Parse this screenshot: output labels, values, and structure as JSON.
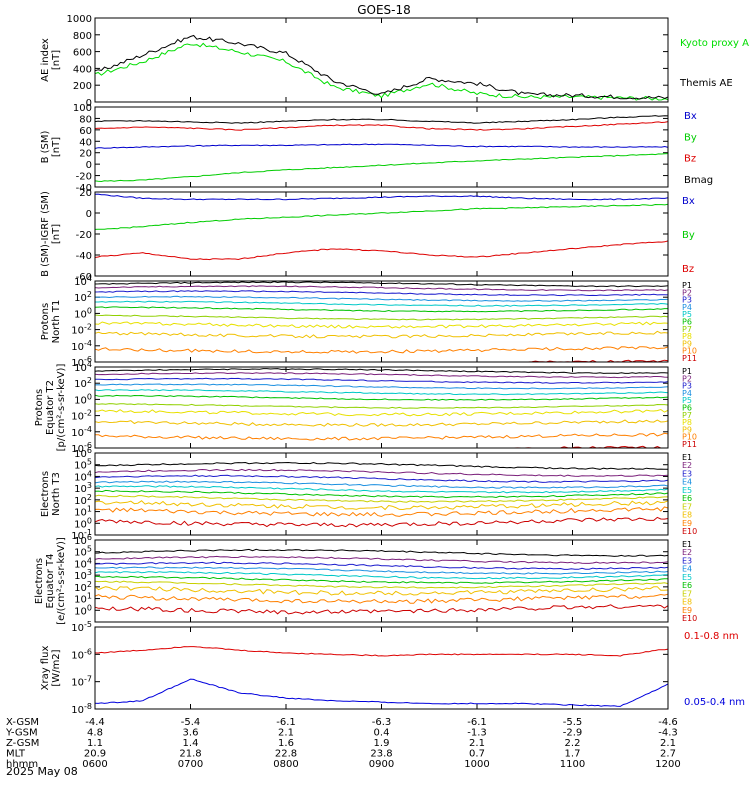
{
  "title": "GOES-18",
  "date": "2025 May 08",
  "ephemeris": {
    "rows": [
      {
        "label": "X-GSM",
        "values": [
          "-4.4",
          "-5.4",
          "-6.1",
          "-6.3",
          "-6.1",
          "-5.5",
          "-4.6"
        ]
      },
      {
        "label": "Y-GSM",
        "values": [
          "4.8",
          "3.6",
          "2.1",
          "0.4",
          "-1.3",
          "-2.9",
          "-4.3"
        ]
      },
      {
        "label": "Z-GSM",
        "values": [
          "1.1",
          "1.4",
          "1.6",
          "1.9",
          "2.1",
          "2.2",
          "2.1"
        ]
      },
      {
        "label": "MLT",
        "values": [
          "20.9",
          "21.8",
          "22.8",
          "23.8",
          "0.7",
          "1.7",
          "2.7"
        ]
      },
      {
        "label": "hhmm",
        "values": [
          "0600",
          "0700",
          "0800",
          "0900",
          "1000",
          "1100",
          "1200"
        ]
      }
    ]
  },
  "chart_data": [
    {
      "type": "line",
      "ylabel": [
        "AE index",
        "[nT]"
      ],
      "ylim": [
        0,
        1000
      ],
      "yticks": [
        "1000",
        "800",
        "600",
        "400",
        "200",
        "0"
      ],
      "x": [
        "0600",
        "0630",
        "0700",
        "0730",
        "0800",
        "0830",
        "0900",
        "0930",
        "1000",
        "1030",
        "1100",
        "1130",
        "1200"
      ],
      "series": [
        {
          "name": "Kyoto proxy AE",
          "color": "#00dd00",
          "values": [
            320,
            480,
            700,
            600,
            480,
            180,
            70,
            220,
            100,
            60,
            60,
            50,
            40
          ]
        },
        {
          "name": "Themis AE",
          "color": "#000000",
          "values": [
            350,
            560,
            780,
            700,
            580,
            250,
            90,
            280,
            220,
            90,
            80,
            60,
            50
          ]
        }
      ]
    },
    {
      "type": "line",
      "ylabel": [
        "B (SM)",
        "[nT]"
      ],
      "ylim": [
        -40,
        100
      ],
      "yticks": [
        "100",
        "80",
        "60",
        "40",
        "20",
        "0",
        "-20",
        "-40"
      ],
      "x": [
        "0600",
        "0630",
        "0700",
        "0730",
        "0800",
        "0830",
        "0900",
        "0930",
        "1000",
        "1030",
        "1100",
        "1130",
        "1200"
      ],
      "series": [
        {
          "name": "Bx",
          "color": "#0000cc",
          "values": [
            28,
            30,
            32,
            33,
            33,
            34,
            35,
            33,
            31,
            31,
            30,
            30,
            30
          ]
        },
        {
          "name": "By",
          "color": "#00cc00",
          "values": [
            -30,
            -28,
            -22,
            -15,
            -10,
            -6,
            -2,
            2,
            6,
            9,
            12,
            15,
            18
          ]
        },
        {
          "name": "Bz",
          "color": "#dd0000",
          "values": [
            62,
            65,
            63,
            60,
            64,
            68,
            68,
            62,
            60,
            62,
            66,
            70,
            74
          ]
        },
        {
          "name": "Bmag",
          "color": "#000000",
          "values": [
            75,
            76,
            74,
            72,
            75,
            78,
            78,
            75,
            72,
            75,
            78,
            82,
            85
          ]
        }
      ]
    },
    {
      "type": "line",
      "ylabel": [
        "B (SM)-IGRF (SM)",
        "[nT]"
      ],
      "ylim": [
        -60,
        20
      ],
      "yticks": [
        "20",
        "0",
        "-20",
        "-40",
        "-60"
      ],
      "x": [
        "0600",
        "0630",
        "0700",
        "0730",
        "0800",
        "0830",
        "0900",
        "0930",
        "1000",
        "1030",
        "1100",
        "1130",
        "1200"
      ],
      "series": [
        {
          "name": "Bx",
          "color": "#0000cc",
          "values": [
            18,
            14,
            13,
            13,
            13,
            14,
            15,
            16,
            16,
            14,
            13,
            13,
            14
          ]
        },
        {
          "name": "By",
          "color": "#00cc00",
          "values": [
            -16,
            -13,
            -9,
            -6,
            -4,
            -2,
            0,
            2,
            4,
            5,
            6,
            7,
            8
          ]
        },
        {
          "name": "Bz",
          "color": "#dd0000",
          "values": [
            -42,
            -38,
            -44,
            -44,
            -38,
            -34,
            -36,
            -40,
            -42,
            -38,
            -34,
            -30,
            -27
          ]
        }
      ]
    },
    {
      "type": "line",
      "scale": "log",
      "ylabel": [
        "Protons",
        "North T1"
      ],
      "ylim": [
        -6,
        4
      ],
      "yticks": [
        "10^4",
        "10^2",
        "10^0",
        "10^-2",
        "10^-4",
        "10^-6"
      ],
      "legend": [
        "P1",
        "P2",
        "P3",
        "P4",
        "P5",
        "P6",
        "P7",
        "P8",
        "P9",
        "P10",
        "P11"
      ],
      "legend_colors": [
        "#000000",
        "#7a1f7a",
        "#1a1acc",
        "#1a8fe0",
        "#00c8c8",
        "#00c000",
        "#90d000",
        "#e8e000",
        "#f0c000",
        "#ff8000",
        "#cc0000"
      ],
      "levels": [
        3.6,
        3.1,
        2.5,
        1.8,
        1.2,
        0.5,
        -0.5,
        -1.4,
        -2.6,
        -4.5,
        -6.2
      ]
    },
    {
      "type": "line",
      "scale": "log",
      "ylabel": [
        "Protons",
        "Equator T2",
        "[p/(cm²-s-sr-keV)]"
      ],
      "ylim": [
        -6,
        4
      ],
      "yticks": [
        "10^4",
        "10^2",
        "10^0",
        "10^-2",
        "10^-4",
        "10^-6"
      ],
      "legend": [
        "P1",
        "P2",
        "P3",
        "P4",
        "P5",
        "P6",
        "P7",
        "P8",
        "P9",
        "P10",
        "P11"
      ],
      "legend_colors": [
        "#000000",
        "#7a1f7a",
        "#1a1acc",
        "#1a8fe0",
        "#00c8c8",
        "#00c000",
        "#90d000",
        "#e8e000",
        "#f0c000",
        "#ff8000",
        "#cc0000"
      ],
      "levels": [
        3.5,
        3.0,
        2.3,
        1.6,
        0.9,
        0.2,
        -0.8,
        -1.6,
        -2.9,
        -4.6,
        -6.2
      ]
    },
    {
      "type": "line",
      "scale": "log",
      "ylabel": [
        "Electrons",
        "North T3"
      ],
      "ylim": [
        -1,
        6
      ],
      "yticks": [
        "10^6",
        "10^5",
        "10^4",
        "10^3",
        "10^2",
        "10^1",
        "10^0",
        "10^-1"
      ],
      "legend": [
        "E1",
        "E2",
        "E3",
        "E4",
        "E5",
        "E6",
        "E7",
        "E8",
        "E9",
        "E10"
      ],
      "legend_colors": [
        "#000000",
        "#7a1f7a",
        "#1a1acc",
        "#1a8fe0",
        "#00c8c8",
        "#00c000",
        "#c8d000",
        "#f0c000",
        "#ff8000",
        "#cc0000"
      ],
      "levels": [
        4.9,
        4.3,
        3.8,
        3.3,
        2.9,
        2.5,
        2.1,
        1.6,
        1.0,
        0.1
      ]
    },
    {
      "type": "line",
      "scale": "log",
      "ylabel": [
        "Electrons",
        "Equator T4",
        "[e/(cm²-s-sr-keV)]"
      ],
      "ylim": [
        -1,
        6
      ],
      "yticks": [
        "10^6",
        "10^5",
        "10^4",
        "10^3",
        "10^2",
        "10^1",
        "10^0"
      ],
      "legend": [
        "E1",
        "E2",
        "E3",
        "E4",
        "E5",
        "E6",
        "E7",
        "E8",
        "E9",
        "E10"
      ],
      "legend_colors": [
        "#000000",
        "#7a1f7a",
        "#1a1acc",
        "#1a8fe0",
        "#00c8c8",
        "#00c000",
        "#c8d000",
        "#f0c000",
        "#ff8000",
        "#cc0000"
      ],
      "levels": [
        4.9,
        4.3,
        3.8,
        3.4,
        3.0,
        2.6,
        2.2,
        1.7,
        1.0,
        0.1
      ]
    },
    {
      "type": "line",
      "scale": "log",
      "ylabel": [
        "Xray flux",
        "[W/m2]"
      ],
      "ylim": [
        -8,
        -5
      ],
      "yticks": [
        "10^-5",
        "10^-6",
        "10^-7",
        "10^-8"
      ],
      "x": [
        "0600",
        "0630",
        "0700",
        "0730",
        "0800",
        "0830",
        "0900",
        "0930",
        "1000",
        "1030",
        "1100",
        "1130",
        "1200"
      ],
      "series": [
        {
          "name": "0.1-0.8 nm",
          "color": "#dd0000",
          "values": [
            -5.95,
            -5.85,
            -5.7,
            -5.85,
            -5.95,
            -6.0,
            -6.05,
            -6.0,
            -6.0,
            -6.0,
            -6.0,
            -6.05,
            -5.8
          ]
        },
        {
          "name": "0.05-0.4 nm",
          "color": "#0000dd",
          "values": [
            -7.8,
            -7.7,
            -6.9,
            -7.4,
            -7.6,
            -7.7,
            -7.75,
            -7.8,
            -7.8,
            -7.8,
            -7.85,
            -7.9,
            -7.1
          ]
        }
      ]
    }
  ]
}
